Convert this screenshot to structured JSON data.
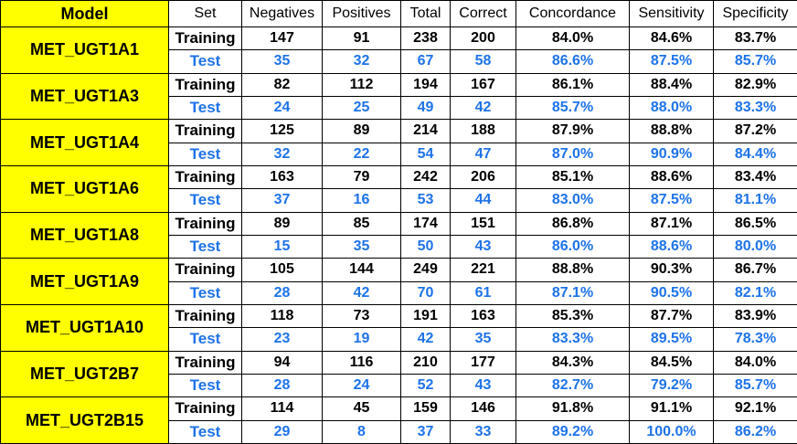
{
  "headers": [
    "Model",
    "Set",
    "Negatives",
    "Positives",
    "Total",
    "Correct",
    "Concordance",
    "Sensitivity",
    "Specificity"
  ],
  "colors": {
    "model_bg": "#ffff00",
    "training_text": "#000000",
    "test_text": "#1e73e8"
  },
  "models": [
    {
      "name": "MET_UGT1A1",
      "training": [
        "Training",
        "147",
        "91",
        "238",
        "200",
        "84.0%",
        "84.6%",
        "83.7%"
      ],
      "test": [
        "Test",
        "35",
        "32",
        "67",
        "58",
        "86.6%",
        "87.5%",
        "85.7%"
      ]
    },
    {
      "name": "MET_UGT1A3",
      "training": [
        "Training",
        "82",
        "112",
        "194",
        "167",
        "86.1%",
        "88.4%",
        "82.9%"
      ],
      "test": [
        "Test",
        "24",
        "25",
        "49",
        "42",
        "85.7%",
        "88.0%",
        "83.3%"
      ]
    },
    {
      "name": "MET_UGT1A4",
      "training": [
        "Training",
        "125",
        "89",
        "214",
        "188",
        "87.9%",
        "88.8%",
        "87.2%"
      ],
      "test": [
        "Test",
        "32",
        "22",
        "54",
        "47",
        "87.0%",
        "90.9%",
        "84.4%"
      ]
    },
    {
      "name": "MET_UGT1A6",
      "training": [
        "Training",
        "163",
        "79",
        "242",
        "206",
        "85.1%",
        "88.6%",
        "83.4%"
      ],
      "test": [
        "Test",
        "37",
        "16",
        "53",
        "44",
        "83.0%",
        "87.5%",
        "81.1%"
      ]
    },
    {
      "name": "MET_UGT1A8",
      "training": [
        "Training",
        "89",
        "85",
        "174",
        "151",
        "86.8%",
        "87.1%",
        "86.5%"
      ],
      "test": [
        "Test",
        "15",
        "35",
        "50",
        "43",
        "86.0%",
        "88.6%",
        "80.0%"
      ]
    },
    {
      "name": "MET_UGT1A9",
      "training": [
        "Training",
        "105",
        "144",
        "249",
        "221",
        "88.8%",
        "90.3%",
        "86.7%"
      ],
      "test": [
        "Test",
        "28",
        "42",
        "70",
        "61",
        "87.1%",
        "90.5%",
        "82.1%"
      ]
    },
    {
      "name": "MET_UGT1A10",
      "training": [
        "Training",
        "118",
        "73",
        "191",
        "163",
        "85.3%",
        "87.7%",
        "83.9%"
      ],
      "test": [
        "Test",
        "23",
        "19",
        "42",
        "35",
        "83.3%",
        "89.5%",
        "78.3%"
      ]
    },
    {
      "name": "MET_UGT2B7",
      "training": [
        "Training",
        "94",
        "116",
        "210",
        "177",
        "84.3%",
        "84.5%",
        "84.0%"
      ],
      "test": [
        "Test",
        "28",
        "24",
        "52",
        "43",
        "82.7%",
        "79.2%",
        "85.7%"
      ]
    },
    {
      "name": "MET_UGT2B15",
      "training": [
        "Training",
        "114",
        "45",
        "159",
        "146",
        "91.8%",
        "91.1%",
        "92.1%"
      ],
      "test": [
        "Test",
        "29",
        "8",
        "37",
        "33",
        "89.2%",
        "100.0%",
        "86.2%"
      ]
    }
  ]
}
